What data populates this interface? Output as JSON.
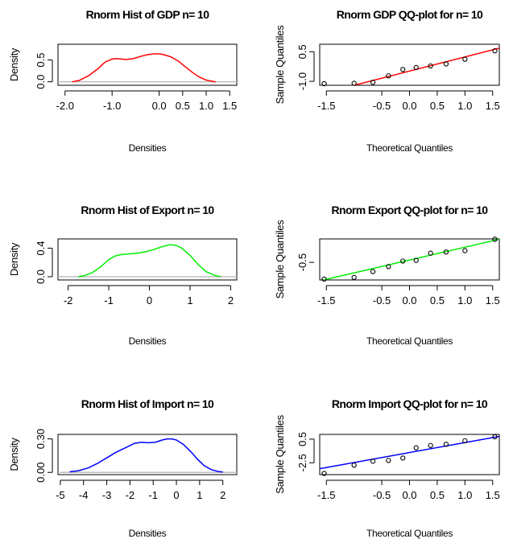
{
  "chart_data": [
    {
      "id": "gdp-hist",
      "type": "line",
      "title": "Rnorm Hist of GDP n= 10",
      "xlabel": "Densities",
      "ylabel": "Density",
      "color": "#ff0000",
      "xlim": [
        -2.15,
        1.65
      ],
      "ylim": [
        -0.08,
        0.86
      ],
      "xticks": [
        -2.0,
        -1.0,
        0.0,
        0.5,
        1.0,
        1.5
      ],
      "xtick_labels": [
        "-2.0",
        "-1.0",
        "0.0",
        "0.5",
        "1.0",
        "1.5"
      ],
      "yticks": [
        0.0,
        0.5
      ],
      "ytick_labels": [
        "0.0",
        "0.5"
      ],
      "x": [
        -1.85,
        -1.7,
        -1.5,
        -1.3,
        -1.15,
        -1.0,
        -0.9,
        -0.8,
        -0.7,
        -0.55,
        -0.4,
        -0.25,
        -0.1,
        0.0,
        0.1,
        0.25,
        0.4,
        0.55,
        0.7,
        0.85,
        1.0,
        1.1,
        1.2
      ],
      "y": [
        0.0,
        0.03,
        0.14,
        0.3,
        0.45,
        0.52,
        0.53,
        0.52,
        0.51,
        0.53,
        0.58,
        0.62,
        0.64,
        0.64,
        0.62,
        0.57,
        0.48,
        0.35,
        0.22,
        0.11,
        0.04,
        0.015,
        0.0
      ]
    },
    {
      "id": "gdp-qq",
      "type": "scatter",
      "title": "Rnorm GDP QQ-plot for n= 10",
      "xlabel": "Theoretical Quantiles",
      "ylabel": "Sample Quantiles",
      "color": "#ff0000",
      "xlim": [
        -1.62,
        1.62
      ],
      "ylim": [
        -1.2,
        0.88
      ],
      "xticks": [
        -1.5,
        -0.5,
        0.0,
        0.5,
        1.0,
        1.5
      ],
      "xtick_labels": [
        "-1.5",
        "-0.5",
        "0.0",
        "0.5",
        "1.0",
        "1.5"
      ],
      "yticks": [
        -1.0,
        0.5
      ],
      "ytick_labels": [
        "-1.0",
        "0.5"
      ],
      "x": [
        -1.54,
        -1.0,
        -0.66,
        -0.38,
        -0.12,
        0.12,
        0.38,
        0.66,
        1.0,
        1.54
      ],
      "y": [
        -1.12,
        -1.1,
        -1.05,
        -0.72,
        -0.4,
        -0.3,
        -0.22,
        -0.12,
        0.12,
        0.55
      ],
      "line": [
        [
          -1.0,
          -1.2
        ],
        [
          1.62,
          0.68
        ]
      ]
    },
    {
      "id": "export-hist",
      "type": "line",
      "title": "Rnorm Hist of Export n= 10",
      "xlabel": "Densities",
      "ylabel": "Density",
      "color": "#00ee00",
      "xlim": [
        -2.25,
        2.15
      ],
      "ylim": [
        -0.045,
        0.53
      ],
      "xticks": [
        -2,
        -1,
        0,
        1,
        2
      ],
      "xtick_labels": [
        "-2",
        "-1",
        "0",
        "1",
        "2"
      ],
      "yticks": [
        0.0,
        0.4
      ],
      "ytick_labels": [
        "0.0",
        "0.4"
      ],
      "x": [
        -1.75,
        -1.6,
        -1.4,
        -1.2,
        -1.0,
        -0.85,
        -0.7,
        -0.5,
        -0.3,
        -0.1,
        0.1,
        0.3,
        0.5,
        0.65,
        0.8,
        1.0,
        1.2,
        1.4,
        1.6,
        1.75
      ],
      "y": [
        0.0,
        0.015,
        0.06,
        0.14,
        0.24,
        0.29,
        0.31,
        0.32,
        0.33,
        0.35,
        0.38,
        0.42,
        0.45,
        0.44,
        0.4,
        0.3,
        0.17,
        0.07,
        0.02,
        0.0
      ]
    },
    {
      "id": "export-qq",
      "type": "scatter",
      "title": "Rnorm Export QQ-plot for n= 10",
      "xlabel": "Theoretical Quantiles",
      "ylabel": "Sample Quantiles",
      "color": "#00ee00",
      "xlim": [
        -1.62,
        1.62
      ],
      "ylim": [
        -1.55,
        0.9
      ],
      "xticks": [
        -1.5,
        -0.5,
        0.0,
        0.5,
        1.0,
        1.5
      ],
      "xtick_labels": [
        "-1.5",
        "-0.5",
        "0.0",
        "0.5",
        "1.0",
        "1.5"
      ],
      "yticks": [
        -0.5
      ],
      "ytick_labels": [
        "-0.5"
      ],
      "x": [
        -1.54,
        -1.0,
        -0.66,
        -0.38,
        -0.12,
        0.12,
        0.38,
        0.66,
        1.0,
        1.54
      ],
      "y": [
        -1.5,
        -1.4,
        -1.05,
        -0.75,
        -0.42,
        -0.38,
        0.05,
        0.12,
        0.2,
        0.88
      ],
      "line": [
        [
          -1.55,
          -1.55
        ],
        [
          1.62,
          0.88
        ]
      ]
    },
    {
      "id": "import-hist",
      "type": "line",
      "title": "Rnorm Hist of Import n= 10",
      "xlabel": "Densities",
      "ylabel": "Density",
      "color": "#0000ff",
      "xlim": [
        -5.1,
        2.6
      ],
      "ylim": [
        -0.02,
        0.34
      ],
      "xticks": [
        -5,
        -4,
        -3,
        -2,
        -1,
        0,
        1,
        2
      ],
      "xtick_labels": [
        "-5",
        "-4",
        "-3",
        "-2",
        "-1",
        "0",
        "1",
        "2"
      ],
      "yticks": [
        0.0,
        0.3
      ],
      "ytick_labels": [
        "0.00",
        "0.30"
      ],
      "x": [
        -4.6,
        -4.2,
        -3.8,
        -3.4,
        -3.0,
        -2.6,
        -2.2,
        -1.8,
        -1.5,
        -1.2,
        -0.9,
        -0.6,
        -0.4,
        -0.2,
        0.0,
        0.3,
        0.6,
        0.9,
        1.2,
        1.5,
        1.8,
        2.0
      ],
      "y": [
        0.005,
        0.015,
        0.04,
        0.08,
        0.13,
        0.18,
        0.22,
        0.26,
        0.27,
        0.265,
        0.27,
        0.29,
        0.3,
        0.3,
        0.29,
        0.25,
        0.19,
        0.12,
        0.06,
        0.025,
        0.008,
        0.003
      ]
    },
    {
      "id": "import-qq",
      "type": "scatter",
      "title": "Rnorm Import QQ-plot for n= 10",
      "xlabel": "Theoretical Quantiles",
      "ylabel": "Sample Quantiles",
      "color": "#0000ff",
      "xlim": [
        -1.62,
        1.62
      ],
      "ylim": [
        -4.0,
        1.1
      ],
      "xticks": [
        -1.5,
        -0.5,
        0.0,
        0.5,
        1.0,
        1.5
      ],
      "xtick_labels": [
        "-1.5",
        "-0.5",
        "0.0",
        "0.5",
        "1.0",
        "1.5"
      ],
      "yticks": [
        -2.5,
        0.5
      ],
      "ytick_labels": [
        "-2.5",
        "0.5"
      ],
      "x": [
        -1.54,
        -1.0,
        -0.66,
        -0.38,
        -0.12,
        0.12,
        0.38,
        0.66,
        1.0,
        1.54
      ],
      "y": [
        -3.85,
        -2.8,
        -2.3,
        -2.2,
        -1.9,
        -0.6,
        -0.3,
        -0.15,
        0.3,
        0.8
      ],
      "line": [
        [
          -1.62,
          -3.25
        ],
        [
          1.62,
          0.85
        ]
      ]
    }
  ]
}
